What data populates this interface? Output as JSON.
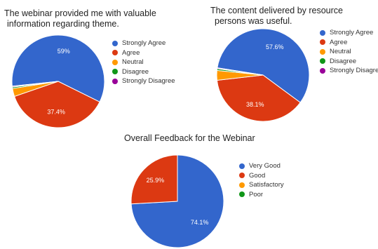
{
  "chart_data": [
    {
      "type": "pie",
      "title_lines": [
        "The webinar provided me with valuable",
        "information regarding theme."
      ],
      "categories": [
        "Strongly Agree",
        "Agree",
        "Neutral",
        "Disagree",
        "Strongly Disagree"
      ],
      "values": [
        59,
        37.4,
        2.8,
        0.5,
        0.3
      ],
      "data_labels": [
        "59%",
        "37.4%",
        "",
        "",
        ""
      ],
      "colors": [
        "#3366cc",
        "#dc3912",
        "#ff9900",
        "#109618",
        "#990099"
      ],
      "legend_position": "right"
    },
    {
      "type": "pie",
      "title_lines": [
        "The content delivered by resource",
        "persons was useful."
      ],
      "categories": [
        "Strongly Agree",
        "Agree",
        "Neutral",
        "Disagree",
        "Strongly Disagree"
      ],
      "values": [
        57.6,
        38.1,
        3.4,
        0.6,
        0.3
      ],
      "data_labels": [
        "57.6%",
        "38.1%",
        "",
        "",
        ""
      ],
      "colors": [
        "#3366cc",
        "#dc3912",
        "#ff9900",
        "#109618",
        "#990099"
      ],
      "legend_position": "right"
    },
    {
      "type": "pie",
      "title_lines": [
        "Overall Feedback for the Webinar"
      ],
      "categories": [
        "Very Good",
        "Good",
        "Satisfactory",
        "Poor"
      ],
      "values": [
        74.1,
        25.9,
        0,
        0
      ],
      "data_labels": [
        "74.1%",
        "25.9%",
        "",
        ""
      ],
      "colors": [
        "#3366cc",
        "#dc3912",
        "#ff9900",
        "#109618"
      ],
      "legend_position": "right"
    }
  ]
}
